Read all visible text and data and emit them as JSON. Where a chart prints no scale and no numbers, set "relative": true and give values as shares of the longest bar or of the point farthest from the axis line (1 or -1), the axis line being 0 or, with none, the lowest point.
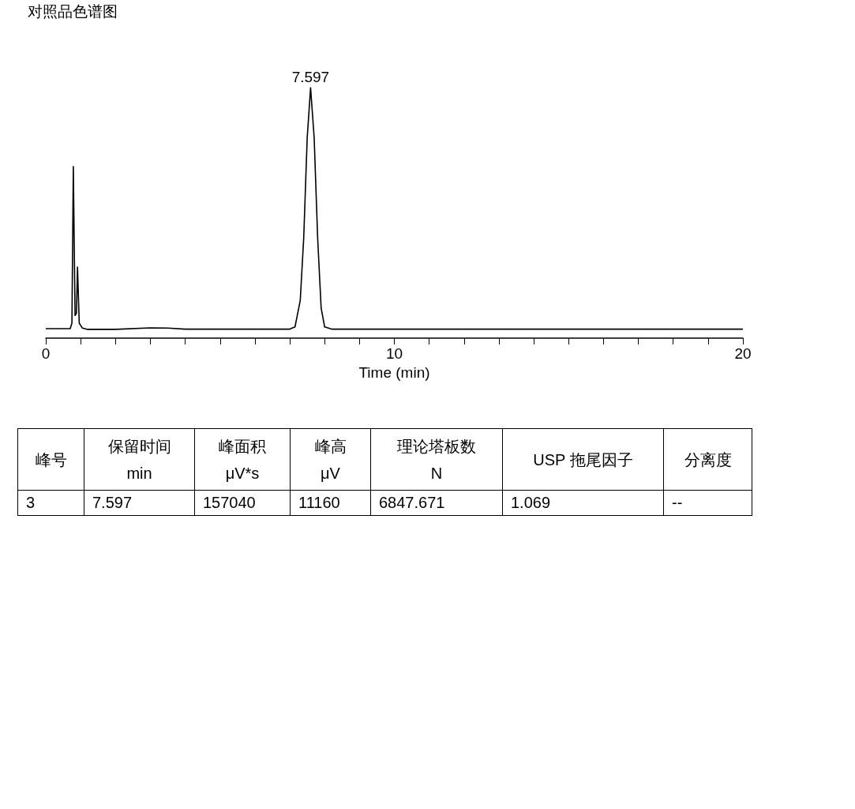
{
  "chart_data": {
    "type": "line",
    "title": "对照品色谱图",
    "xlabel": "Time (min)",
    "relative": true,
    "x": [
      0,
      0.7,
      0.75,
      0.79,
      0.84,
      0.88,
      0.91,
      0.96,
      1.05,
      1.2,
      2.0,
      3.0,
      3.5,
      4.0,
      7.0,
      7.15,
      7.3,
      7.4,
      7.5,
      7.597,
      7.7,
      7.8,
      7.9,
      8.0,
      8.2,
      20
    ],
    "series": [
      {
        "color": "#000000",
        "values": [
          0.038,
          0.038,
          0.06,
          0.685,
          0.09,
          0.1,
          0.284,
          0.06,
          0.04,
          0.035,
          0.035,
          0.041,
          0.04,
          0.036,
          0.036,
          0.045,
          0.15,
          0.4,
          0.8,
          1,
          0.8,
          0.4,
          0.12,
          0.045,
          0.036,
          0.036
        ]
      }
    ],
    "xlim": [
      0,
      20
    ],
    "xticks": [
      0,
      {
        "value": 1,
        "label": null
      },
      {
        "value": 2,
        "label": null
      },
      {
        "value": 3,
        "label": null
      },
      {
        "value": 4,
        "label": null
      },
      {
        "value": 5,
        "label": null
      },
      {
        "value": 6,
        "label": null
      },
      {
        "value": 7,
        "label": null
      },
      {
        "value": 8,
        "label": null
      },
      {
        "value": 9,
        "label": null
      },
      10,
      {
        "value": 11,
        "label": null
      },
      {
        "value": 12,
        "label": null
      },
      {
        "value": 13,
        "label": null
      },
      {
        "value": 14,
        "label": null
      },
      {
        "value": 15,
        "label": null
      },
      {
        "value": 16,
        "label": null
      },
      {
        "value": 17,
        "label": null
      },
      {
        "value": 18,
        "label": null
      },
      {
        "value": 19,
        "label": null
      },
      20
    ],
    "tick_labels": "x",
    "grid": false,
    "marker": "none",
    "line_style": "solid",
    "annotations": [
      {
        "text": "7.597",
        "x": 7.597,
        "y": 1
      },
      "峰号",
      "保留时间\nmin",
      "峰面积\nμV*s",
      "峰高\nμV",
      "理论塔板数\nN",
      "USP 拖尾因子",
      "分离度",
      "3",
      "7.597",
      "157040",
      "11160",
      "6847.671",
      "1.069",
      "--"
    ]
  }
}
